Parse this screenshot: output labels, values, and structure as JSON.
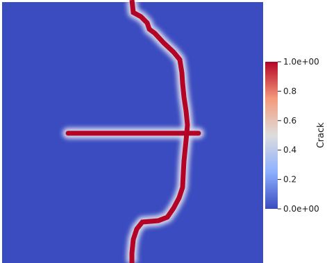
{
  "colors": {
    "background_field": "#3b4cc0",
    "crack": "#b40426",
    "colormap_low": "#3b4cc0",
    "colormap_mid": "#dddddd",
    "colormap_high": "#b40426"
  },
  "colorbar": {
    "title": "Crack",
    "range": [
      0.0,
      1.0
    ],
    "tick_values": [
      0.0,
      0.2,
      0.4,
      0.6,
      0.8,
      1.0
    ],
    "tick_labels": [
      "0.0e+00",
      "0.2",
      "0.4",
      "0.6",
      "0.8",
      "1.0e+00"
    ]
  }
}
